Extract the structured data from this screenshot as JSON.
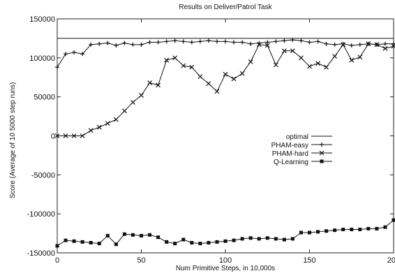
{
  "chart_data": {
    "type": "line",
    "title": "Results on Deliver/Patrol Task",
    "xlabel": "Num Primitive Steps, in 10,000s",
    "ylabel": "Score (Average of 10 5000 step runs)",
    "xlim": [
      0,
      200
    ],
    "ylim": [
      -150000,
      150000
    ],
    "xticks": [
      "0",
      "50",
      "100",
      "150",
      "200"
    ],
    "yticks": [
      "150000",
      "100000",
      "50000",
      "0",
      "-50000",
      "-100000",
      "-150000"
    ],
    "legend_position": "center-right",
    "grid": false,
    "series": [
      {
        "name": "optimal",
        "marker": "none",
        "x": [
          0,
          200
        ],
        "y": [
          125000,
          125000
        ]
      },
      {
        "name": "PHAM-easy",
        "marker": "plus",
        "x": [
          0,
          5,
          10,
          15,
          20,
          25,
          30,
          35,
          40,
          45,
          50,
          55,
          60,
          65,
          70,
          75,
          80,
          85,
          90,
          95,
          100,
          105,
          110,
          115,
          120,
          125,
          130,
          135,
          140,
          145,
          150,
          155,
          160,
          165,
          170,
          175,
          180,
          185,
          190,
          195,
          200
        ],
        "y": [
          88000,
          105000,
          107000,
          105000,
          117000,
          118000,
          119000,
          116000,
          119000,
          117000,
          117000,
          120000,
          120000,
          121000,
          122000,
          121000,
          120000,
          121000,
          122000,
          121000,
          121000,
          120000,
          120000,
          118000,
          119000,
          120000,
          121000,
          122000,
          123000,
          122000,
          120000,
          121000,
          118000,
          117000,
          118000,
          116000,
          117000,
          118000,
          117000,
          118000,
          118000
        ]
      },
      {
        "name": "PHAM-hard",
        "marker": "x",
        "x": [
          0,
          5,
          10,
          15,
          20,
          25,
          30,
          35,
          40,
          45,
          50,
          55,
          60,
          65,
          70,
          75,
          80,
          85,
          90,
          95,
          100,
          105,
          110,
          115,
          120,
          125,
          130,
          135,
          140,
          145,
          150,
          155,
          160,
          165,
          170,
          175,
          180,
          185,
          190,
          195,
          200
        ],
        "y": [
          0,
          0,
          0,
          0,
          7000,
          11000,
          16000,
          21000,
          32000,
          43000,
          52000,
          68000,
          65000,
          97000,
          100000,
          90000,
          88000,
          76000,
          67000,
          57000,
          79000,
          73000,
          80000,
          95000,
          117000,
          116000,
          91000,
          109000,
          109000,
          100000,
          89000,
          93000,
          88000,
          102000,
          117000,
          97000,
          101000,
          118000,
          117000,
          112000,
          115000
        ]
      },
      {
        "name": "Q-Learning",
        "marker": "square",
        "x": [
          0,
          5,
          10,
          15,
          20,
          25,
          30,
          35,
          40,
          45,
          50,
          55,
          60,
          65,
          70,
          75,
          80,
          85,
          90,
          95,
          100,
          105,
          110,
          115,
          120,
          125,
          130,
          135,
          140,
          145,
          150,
          155,
          160,
          165,
          170,
          175,
          180,
          185,
          190,
          195,
          200
        ],
        "y": [
          -141000,
          -134000,
          -135000,
          -136000,
          -137000,
          -138000,
          -128000,
          -139000,
          -126000,
          -127000,
          -128000,
          -127000,
          -130000,
          -136000,
          -138000,
          -133000,
          -137000,
          -138000,
          -137000,
          -136000,
          -135000,
          -134000,
          -132000,
          -131000,
          -132000,
          -131000,
          -132000,
          -133000,
          -132000,
          -124000,
          -124000,
          -123000,
          -122000,
          -121000,
          -120000,
          -120000,
          -120000,
          -119000,
          -119000,
          -117000,
          -108000
        ]
      }
    ]
  }
}
